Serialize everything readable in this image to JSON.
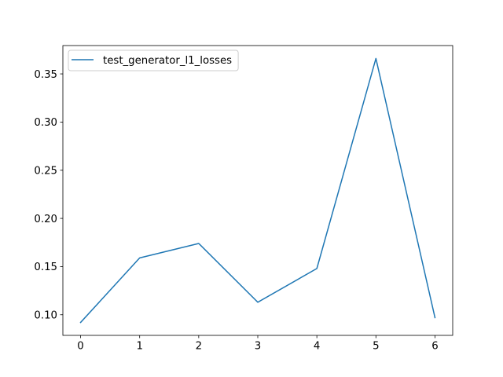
{
  "chart_data": {
    "type": "line",
    "x": [
      0,
      1,
      2,
      3,
      4,
      5,
      6
    ],
    "series": [
      {
        "name": "test_generator_l1_losses",
        "values": [
          0.092,
          0.159,
          0.174,
          0.113,
          0.148,
          0.366,
          0.097
        ],
        "color": "#1f77b4"
      }
    ],
    "title": "",
    "xlabel": "",
    "ylabel": "",
    "xlim": [
      -0.3,
      6.3
    ],
    "ylim": [
      0.0786,
      0.3794
    ],
    "xticks": [
      0,
      1,
      2,
      3,
      4,
      5,
      6
    ],
    "xtick_labels": [
      "0",
      "1",
      "2",
      "3",
      "4",
      "5",
      "6"
    ],
    "yticks": [
      0.1,
      0.15,
      0.2,
      0.25,
      0.3,
      0.35
    ],
    "ytick_labels": [
      "0.10",
      "0.15",
      "0.20",
      "0.25",
      "0.30",
      "0.35"
    ],
    "grid": false,
    "legend_position": "upper-left"
  }
}
